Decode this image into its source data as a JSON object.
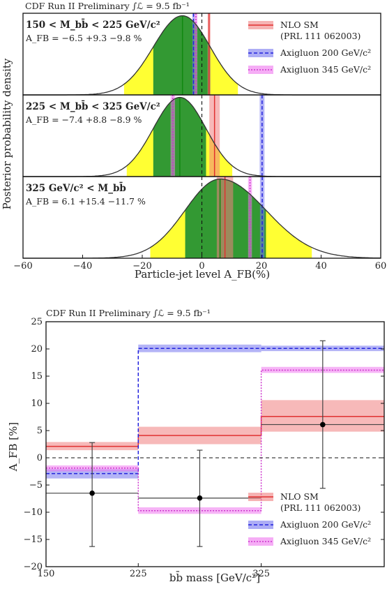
{
  "colors": {
    "sm": "#f08080",
    "sm_line": "#e03030",
    "axi200": "#7777ee",
    "axi200_line": "#2222dd",
    "axi345": "#ee77ee",
    "axi345_line": "#cc33cc",
    "green": "#339933",
    "yellow": "#ffff33",
    "green_line": "#118811",
    "data_point": "#000000",
    "data_bar": "#444444"
  },
  "chart_data": [
    {
      "type": "area",
      "title": "CDF Run II Preliminary ∫ℒ = 9.5 fb⁻¹",
      "xlabel": "Particle-jet level A_FB(%)",
      "ylabel": "Posterior probability density",
      "xlim": [
        -60,
        60
      ],
      "xticks": [
        -60,
        -40,
        -20,
        0,
        20,
        40,
        60
      ],
      "legend": {
        "placement": "top-right",
        "entries": [
          "NLO SM",
          "(PRL 111 062003)",
          "Axigluon 200 GeV/c²",
          "Axigluon 345 GeV/c²"
        ]
      },
      "panels": [
        {
          "label": "150 < M_bb̄ < 225 GeV/c²",
          "result": "A_FB = −6.5 +9.3 −9.8 %",
          "peak": -6.5,
          "err_up": 9.3,
          "err_dn": 9.8,
          "sm": [
            1.9,
            2.9
          ],
          "axi200": [
            -3.2,
            -2.4
          ],
          "axi345": [
            -2.5,
            -1.5
          ]
        },
        {
          "label": "225 < M_bb̄ < 325 GeV/c²",
          "result": "A_FB = −7.4 +8.8 −8.9 %",
          "peak": -7.4,
          "err_up": 8.8,
          "err_dn": 8.9,
          "sm": [
            2.5,
            6.0
          ],
          "axi200": [
            19.4,
            21.0
          ],
          "axi345": [
            -10.5,
            -9.0
          ]
        },
        {
          "label": "325 GeV/c² < M_bb̄",
          "result": "A_FB = 6.1 +15.4 −11.7 %",
          "peak": 6.1,
          "err_up": 15.4,
          "err_dn": 11.7,
          "sm": [
            5.0,
            10.5
          ],
          "axi200": [
            19.5,
            21.0
          ],
          "axi345": [
            15.5,
            16.8
          ]
        }
      ]
    },
    {
      "type": "line",
      "title": "CDF Run II Preliminary ∫ℒ = 9.5 fb⁻¹",
      "xlabel": "bb̄ mass [GeV/c²]",
      "ylabel": "A_FB [%]",
      "xlim": [
        150,
        425
      ],
      "ylim": [
        -20,
        25
      ],
      "xticks": [
        150,
        225,
        325
      ],
      "yticks": [
        -20,
        -15,
        -10,
        -5,
        0,
        5,
        10,
        15,
        20,
        25
      ],
      "bins": [
        [
          150,
          225
        ],
        [
          225,
          325
        ],
        [
          325,
          425
        ]
      ],
      "legend": {
        "placement": "bottom-right",
        "entries": [
          "NLO SM",
          "(PRL 111 062003)",
          "Axigluon 200 GeV/c²",
          "Axigluon 345 GeV/c²"
        ]
      },
      "series": [
        {
          "name": "NLO SM",
          "values": [
            2.1,
            4.1,
            7.6
          ],
          "band": [
            [
              1.4,
              2.9
            ],
            [
              2.5,
              5.7
            ],
            [
              4.8,
              10.6
            ]
          ]
        },
        {
          "name": "Axigluon 200 GeV/c²",
          "values": [
            -2.9,
            20.1,
            20.1
          ],
          "band": [
            [
              -3.8,
              -2.1
            ],
            [
              19.4,
              20.8
            ],
            [
              19.6,
              20.6
            ]
          ]
        },
        {
          "name": "Axigluon 345 GeV/c²",
          "values": [
            -1.9,
            -9.7,
            16.1
          ],
          "band": [
            [
              -2.5,
              -1.4
            ],
            [
              -10.3,
              -9.1
            ],
            [
              15.6,
              16.7
            ]
          ]
        }
      ],
      "data_points": [
        {
          "x": 187.5,
          "y": -6.5,
          "err_up": 9.3,
          "err_dn": 9.8
        },
        {
          "x": 275,
          "y": -7.4,
          "err_up": 8.8,
          "err_dn": 8.9
        },
        {
          "x": 375,
          "y": 6.1,
          "err_up": 15.4,
          "err_dn": 11.7
        }
      ]
    }
  ]
}
